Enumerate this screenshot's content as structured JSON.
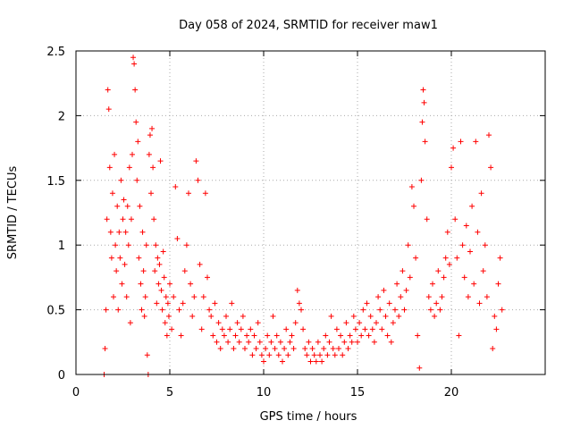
{
  "chart_data": {
    "type": "scatter",
    "title": "Day 058 of 2024, SRMTID for receiver maw1",
    "xlabel": "GPS time / hours",
    "ylabel": "SRMTID / TECUs",
    "xlim": [
      0,
      25
    ],
    "ylim": [
      0,
      2.5
    ],
    "xticks": [
      0,
      5,
      10,
      15,
      20
    ],
    "yticks": [
      0,
      0.5,
      1,
      1.5,
      2,
      2.5
    ],
    "xtick_labels": [
      "0",
      "5",
      "10",
      "15",
      "20"
    ],
    "ytick_labels": [
      "0",
      "0.5",
      "1",
      "1.5",
      "2",
      "2.5"
    ],
    "grid": true,
    "marker": "+",
    "series": [
      {
        "name": "SRMTID",
        "color": "#ff0000",
        "points": [
          [
            1.5,
            0.0
          ],
          [
            1.55,
            0.2
          ],
          [
            1.6,
            0.5
          ],
          [
            1.65,
            1.2
          ],
          [
            1.7,
            2.2
          ],
          [
            1.75,
            2.05
          ],
          [
            1.8,
            1.6
          ],
          [
            1.85,
            1.1
          ],
          [
            1.9,
            0.9
          ],
          [
            1.95,
            1.4
          ],
          [
            2.0,
            0.6
          ],
          [
            2.05,
            1.7
          ],
          [
            2.1,
            1.0
          ],
          [
            2.15,
            0.8
          ],
          [
            2.2,
            1.3
          ],
          [
            2.25,
            0.5
          ],
          [
            2.3,
            1.1
          ],
          [
            2.35,
            0.9
          ],
          [
            2.4,
            1.5
          ],
          [
            2.45,
            0.7
          ],
          [
            2.5,
            1.2
          ],
          [
            2.55,
            1.35
          ],
          [
            2.6,
            0.85
          ],
          [
            2.65,
            1.1
          ],
          [
            2.7,
            0.6
          ],
          [
            2.75,
            1.3
          ],
          [
            2.8,
            1.0
          ],
          [
            2.85,
            1.6
          ],
          [
            2.9,
            0.4
          ],
          [
            2.95,
            1.2
          ],
          [
            3.0,
            1.7
          ],
          [
            3.05,
            2.45
          ],
          [
            3.1,
            2.4
          ],
          [
            3.15,
            2.2
          ],
          [
            3.2,
            1.95
          ],
          [
            3.25,
            1.5
          ],
          [
            3.3,
            1.8
          ],
          [
            3.35,
            0.9
          ],
          [
            3.4,
            1.3
          ],
          [
            3.45,
            0.7
          ],
          [
            3.5,
            0.5
          ],
          [
            3.55,
            1.1
          ],
          [
            3.6,
            0.8
          ],
          [
            3.65,
            0.45
          ],
          [
            3.7,
            0.6
          ],
          [
            3.75,
            1.0
          ],
          [
            3.8,
            0.15
          ],
          [
            3.85,
            0.0
          ],
          [
            3.9,
            1.7
          ],
          [
            3.95,
            1.85
          ],
          [
            4.0,
            1.4
          ],
          [
            4.05,
            1.9
          ],
          [
            4.1,
            1.6
          ],
          [
            4.15,
            1.2
          ],
          [
            4.2,
            0.8
          ],
          [
            4.25,
            1.0
          ],
          [
            4.3,
            0.55
          ],
          [
            4.35,
            0.9
          ],
          [
            4.4,
            0.7
          ],
          [
            4.45,
            0.85
          ],
          [
            4.5,
            1.65
          ],
          [
            4.55,
            0.65
          ],
          [
            4.6,
            0.5
          ],
          [
            4.65,
            0.95
          ],
          [
            4.7,
            0.75
          ],
          [
            4.75,
            0.4
          ],
          [
            4.8,
            0.6
          ],
          [
            4.85,
            0.3
          ],
          [
            4.9,
            0.55
          ],
          [
            4.95,
            0.45
          ],
          [
            5.0,
            0.7
          ],
          [
            5.1,
            0.35
          ],
          [
            5.2,
            0.6
          ],
          [
            5.3,
            1.45
          ],
          [
            5.4,
            1.05
          ],
          [
            5.5,
            0.5
          ],
          [
            5.6,
            0.3
          ],
          [
            5.7,
            0.55
          ],
          [
            5.8,
            0.8
          ],
          [
            5.9,
            1.0
          ],
          [
            6.0,
            1.4
          ],
          [
            6.1,
            0.7
          ],
          [
            6.2,
            0.45
          ],
          [
            6.3,
            0.6
          ],
          [
            6.4,
            1.65
          ],
          [
            6.5,
            1.5
          ],
          [
            6.6,
            0.85
          ],
          [
            6.7,
            0.35
          ],
          [
            6.8,
            0.6
          ],
          [
            6.9,
            1.4
          ],
          [
            7.0,
            0.75
          ],
          [
            7.1,
            0.5
          ],
          [
            7.2,
            0.45
          ],
          [
            7.3,
            0.3
          ],
          [
            7.4,
            0.55
          ],
          [
            7.5,
            0.25
          ],
          [
            7.6,
            0.4
          ],
          [
            7.7,
            0.2
          ],
          [
            7.8,
            0.35
          ],
          [
            7.9,
            0.3
          ],
          [
            8.0,
            0.45
          ],
          [
            8.1,
            0.25
          ],
          [
            8.2,
            0.35
          ],
          [
            8.3,
            0.55
          ],
          [
            8.4,
            0.2
          ],
          [
            8.5,
            0.3
          ],
          [
            8.6,
            0.4
          ],
          [
            8.7,
            0.25
          ],
          [
            8.8,
            0.35
          ],
          [
            8.9,
            0.45
          ],
          [
            9.0,
            0.2
          ],
          [
            9.1,
            0.3
          ],
          [
            9.2,
            0.25
          ],
          [
            9.3,
            0.35
          ],
          [
            9.4,
            0.15
          ],
          [
            9.5,
            0.3
          ],
          [
            9.6,
            0.2
          ],
          [
            9.7,
            0.4
          ],
          [
            9.8,
            0.25
          ],
          [
            9.9,
            0.15
          ],
          [
            10.0,
            0.1
          ],
          [
            10.1,
            0.2
          ],
          [
            10.2,
            0.3
          ],
          [
            10.3,
            0.15
          ],
          [
            10.4,
            0.25
          ],
          [
            10.5,
            0.45
          ],
          [
            10.6,
            0.2
          ],
          [
            10.7,
            0.3
          ],
          [
            10.8,
            0.15
          ],
          [
            10.9,
            0.25
          ],
          [
            11.0,
            0.1
          ],
          [
            11.1,
            0.2
          ],
          [
            11.2,
            0.35
          ],
          [
            11.3,
            0.15
          ],
          [
            11.4,
            0.25
          ],
          [
            11.5,
            0.3
          ],
          [
            11.6,
            0.2
          ],
          [
            11.7,
            0.4
          ],
          [
            11.8,
            0.65
          ],
          [
            11.9,
            0.55
          ],
          [
            12.0,
            0.5
          ],
          [
            12.1,
            0.35
          ],
          [
            12.2,
            0.2
          ],
          [
            12.3,
            0.15
          ],
          [
            12.4,
            0.25
          ],
          [
            12.5,
            0.1
          ],
          [
            12.6,
            0.2
          ],
          [
            12.7,
            0.15
          ],
          [
            12.8,
            0.1
          ],
          [
            12.9,
            0.25
          ],
          [
            13.0,
            0.15
          ],
          [
            13.1,
            0.1
          ],
          [
            13.2,
            0.2
          ],
          [
            13.3,
            0.3
          ],
          [
            13.4,
            0.15
          ],
          [
            13.5,
            0.25
          ],
          [
            13.6,
            0.45
          ],
          [
            13.7,
            0.2
          ],
          [
            13.8,
            0.15
          ],
          [
            13.9,
            0.35
          ],
          [
            14.0,
            0.2
          ],
          [
            14.1,
            0.3
          ],
          [
            14.2,
            0.15
          ],
          [
            14.3,
            0.25
          ],
          [
            14.4,
            0.4
          ],
          [
            14.5,
            0.2
          ],
          [
            14.6,
            0.3
          ],
          [
            14.7,
            0.25
          ],
          [
            14.8,
            0.45
          ],
          [
            14.9,
            0.35
          ],
          [
            15.0,
            0.25
          ],
          [
            15.1,
            0.4
          ],
          [
            15.2,
            0.3
          ],
          [
            15.3,
            0.5
          ],
          [
            15.4,
            0.35
          ],
          [
            15.5,
            0.55
          ],
          [
            15.6,
            0.3
          ],
          [
            15.7,
            0.45
          ],
          [
            15.8,
            0.35
          ],
          [
            15.9,
            0.25
          ],
          [
            16.0,
            0.4
          ],
          [
            16.1,
            0.6
          ],
          [
            16.2,
            0.5
          ],
          [
            16.3,
            0.35
          ],
          [
            16.4,
            0.65
          ],
          [
            16.5,
            0.45
          ],
          [
            16.6,
            0.3
          ],
          [
            16.7,
            0.55
          ],
          [
            16.8,
            0.25
          ],
          [
            16.9,
            0.4
          ],
          [
            17.0,
            0.5
          ],
          [
            17.1,
            0.7
          ],
          [
            17.2,
            0.45
          ],
          [
            17.3,
            0.6
          ],
          [
            17.4,
            0.8
          ],
          [
            17.5,
            0.5
          ],
          [
            17.6,
            0.65
          ],
          [
            17.7,
            1.0
          ],
          [
            17.8,
            0.75
          ],
          [
            17.9,
            1.45
          ],
          [
            18.0,
            1.3
          ],
          [
            18.1,
            0.9
          ],
          [
            18.2,
            0.3
          ],
          [
            18.3,
            0.05
          ],
          [
            18.4,
            1.5
          ],
          [
            18.45,
            1.95
          ],
          [
            18.5,
            2.2
          ],
          [
            18.55,
            2.1
          ],
          [
            18.6,
            1.8
          ],
          [
            18.7,
            1.2
          ],
          [
            18.8,
            0.6
          ],
          [
            18.9,
            0.5
          ],
          [
            19.0,
            0.7
          ],
          [
            19.1,
            0.45
          ],
          [
            19.2,
            0.55
          ],
          [
            19.3,
            0.8
          ],
          [
            19.4,
            0.5
          ],
          [
            19.5,
            0.6
          ],
          [
            19.6,
            0.75
          ],
          [
            19.7,
            0.9
          ],
          [
            19.8,
            1.1
          ],
          [
            19.9,
            0.85
          ],
          [
            20.0,
            1.6
          ],
          [
            20.1,
            1.75
          ],
          [
            20.2,
            1.2
          ],
          [
            20.3,
            0.9
          ],
          [
            20.4,
            0.3
          ],
          [
            20.5,
            1.8
          ],
          [
            20.6,
            1.0
          ],
          [
            20.7,
            0.75
          ],
          [
            20.8,
            1.15
          ],
          [
            20.9,
            0.6
          ],
          [
            21.0,
            0.95
          ],
          [
            21.1,
            1.3
          ],
          [
            21.2,
            0.7
          ],
          [
            21.3,
            1.8
          ],
          [
            21.4,
            1.1
          ],
          [
            21.5,
            0.55
          ],
          [
            21.6,
            1.4
          ],
          [
            21.7,
            0.8
          ],
          [
            21.8,
            1.0
          ],
          [
            21.9,
            0.6
          ],
          [
            22.0,
            1.85
          ],
          [
            22.1,
            1.6
          ],
          [
            22.2,
            0.2
          ],
          [
            22.3,
            0.45
          ],
          [
            22.4,
            0.35
          ],
          [
            22.5,
            0.7
          ],
          [
            22.6,
            0.9
          ],
          [
            22.7,
            0.5
          ]
        ]
      }
    ]
  }
}
